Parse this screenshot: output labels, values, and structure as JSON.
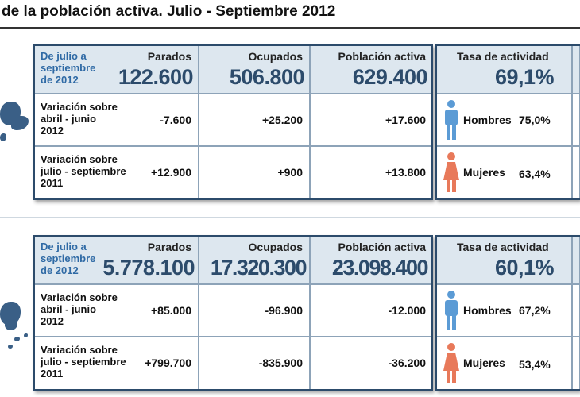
{
  "title": "de la población activa. Julio - Septiembre 2012",
  "columns": {
    "parados": "Parados",
    "ocupados": "Ocupados",
    "poblacion": "Población activa",
    "tasa": "Tasa de actividad"
  },
  "period_label": [
    "De julio a",
    "septiembre",
    "de 2012"
  ],
  "row_labels": {
    "var_trim": [
      "Variación sobre",
      "abril - junio",
      "2012"
    ],
    "var_anual": [
      "Variación sobre",
      "julio - septiembre",
      "2011"
    ]
  },
  "gender": {
    "hombres": "Hombres",
    "mujeres": "Mujeres"
  },
  "colors": {
    "accent": "#2c4b6b",
    "male": "#5b9bd5",
    "female": "#e8795a",
    "header_bg": "#dde7ef"
  },
  "tables": [
    {
      "totals": {
        "parados": "122.600",
        "ocupados": "506.800",
        "poblacion": "629.400",
        "tasa": "69,1%"
      },
      "var_trim": {
        "parados": "-7.600",
        "ocupados": "+25.200",
        "poblacion": "+17.600"
      },
      "var_anual": {
        "parados": "+12.900",
        "ocupados": "+900",
        "poblacion": "+13.800"
      },
      "hombres_pct": "75,0%",
      "mujeres_pct": "63,4%"
    },
    {
      "totals": {
        "parados": "5.778.100",
        "ocupados": "17.320.300",
        "poblacion": "23.098.400",
        "tasa": "60,1%"
      },
      "var_trim": {
        "parados": "+85.000",
        "ocupados": "-96.900",
        "poblacion": "-12.000"
      },
      "var_anual": {
        "parados": "+799.700",
        "ocupados": "-835.900",
        "poblacion": "-36.200"
      },
      "hombres_pct": "67,2%",
      "mujeres_pct": "53,4%"
    }
  ]
}
